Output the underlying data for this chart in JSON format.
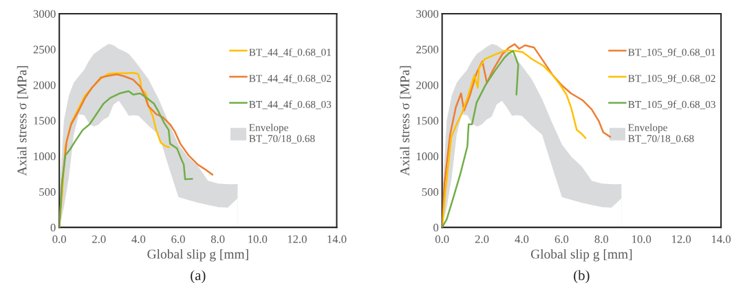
{
  "chart_data": [
    {
      "type": "line",
      "xlabel": "Global slip g [mm]",
      "ylabel": "Axial stress σ [MPa]",
      "annotations": [
        "(a)"
      ],
      "xlim": [
        0,
        14
      ],
      "ylim": [
        0,
        3000
      ],
      "xticks": [
        {
          "value": 0,
          "label": "0.0"
        },
        {
          "value": 2,
          "label": "2.0"
        },
        {
          "value": 4,
          "label": "4.0"
        },
        {
          "value": 6,
          "label": "6.0"
        },
        {
          "value": 8,
          "label": "8.0"
        },
        {
          "value": 10,
          "label": "10.0"
        },
        {
          "value": 12,
          "label": "12.0"
        },
        {
          "value": 14,
          "label": "14.0"
        }
      ],
      "yticks": [
        0,
        500,
        1000,
        1500,
        2000,
        2500,
        3000
      ],
      "grid": false,
      "legend": "right",
      "marker": "none",
      "line_style": "solid",
      "series": [
        {
          "name": "BT_44_4f_0.68_01",
          "color": "#ffc000",
          "x": [
            0,
            0.14,
            0.31,
            0.6,
            0.95,
            1.3,
            1.65,
            2.11,
            2.46,
            2.8,
            3.27,
            3.73,
            3.97,
            4.08,
            4.14,
            4.37,
            4.48,
            4.72,
            4.89,
            5.12,
            5.36,
            5.55
          ],
          "values": [
            0,
            466,
            1141,
            1463,
            1656,
            1849,
            1961,
            2090,
            2154,
            2164,
            2164,
            2170,
            2154,
            2074,
            1945,
            1881,
            1720,
            1559,
            1367,
            1190,
            1141,
            1125
          ]
        },
        {
          "name": "BT_44_4f_0.68_02",
          "color": "#ed7d31",
          "x": [
            0,
            0.14,
            0.37,
            0.6,
            0.95,
            1.3,
            1.65,
            2.11,
            2.46,
            2.92,
            3.27,
            3.73,
            4.08,
            4.31,
            4.49,
            4.89,
            5.24,
            5.59,
            5.82,
            6.11,
            6.52,
            6.98,
            7.33,
            7.73
          ],
          "values": [
            0,
            627,
            1206,
            1447,
            1624,
            1817,
            1961,
            2106,
            2128,
            2148,
            2122,
            2074,
            1977,
            1849,
            1704,
            1592,
            1543,
            1447,
            1350,
            1174,
            1013,
            884,
            820,
            740
          ]
        },
        {
          "name": "BT_44_4f_0.68_03",
          "color": "#70ad47",
          "x": [
            0,
            0.14,
            0.31,
            0.54,
            0.83,
            1.18,
            1.53,
            1.88,
            2.23,
            2.57,
            3.04,
            3.5,
            3.73,
            4.08,
            4.42,
            4.78,
            5.01,
            5.3,
            5.52,
            5.59,
            5.94,
            6.17,
            6.28,
            6.35,
            6.71
          ],
          "values": [
            0,
            627,
            1013,
            1093,
            1222,
            1367,
            1447,
            1592,
            1736,
            1817,
            1881,
            1913,
            1865,
            1881,
            1817,
            1736,
            1624,
            1463,
            1367,
            1174,
            1109,
            949,
            884,
            675,
            682
          ]
        },
        {
          "type": "area",
          "name": "Envelope\nBT_70/18_0.68",
          "color": "#d9dadb",
          "x": [
            0,
            0.1,
            0.25,
            0.5,
            0.75,
            1,
            1.25,
            1.5,
            1.75,
            2,
            2.25,
            2.5,
            2.75,
            3,
            3.25,
            3.5,
            3.75,
            4,
            4.5,
            5,
            5.5,
            6,
            6.5,
            7,
            7.5,
            8,
            8.5,
            9
          ],
          "values": [
            0,
            800,
            1500,
            1850,
            2030,
            2120,
            2200,
            2330,
            2430,
            2480,
            2530,
            2570,
            2550,
            2500,
            2470,
            2430,
            2350,
            2260,
            2070,
            1800,
            1470,
            1160,
            980,
            850,
            650,
            610,
            600,
            600
          ]
        },
        {
          "type": "area",
          "color": "#ffffff",
          "x": [
            0,
            0.1,
            0.25,
            0.5,
            0.75,
            1,
            1.25,
            1.5,
            1.75,
            2,
            2.25,
            2.5,
            2.75,
            3,
            3.25,
            3.5,
            3.75,
            4,
            4.5,
            5,
            5.5,
            6,
            6.5,
            7,
            7.5,
            8,
            8.5,
            9
          ],
          "values": [
            0,
            100,
            280,
            700,
            1300,
            1580,
            1570,
            1450,
            1410,
            1440,
            1510,
            1550,
            1720,
            1770,
            1670,
            1560,
            1570,
            1560,
            1420,
            1300,
            850,
            420,
            380,
            340,
            310,
            280,
            270,
            400
          ]
        }
      ]
    },
    {
      "type": "line",
      "xlabel": "Global slip g [mm]",
      "ylabel": "Axial stress σ [MPa]",
      "annotations": [
        "(b)"
      ],
      "xlim": [
        0,
        14
      ],
      "ylim": [
        0,
        3000
      ],
      "xticks": [
        {
          "value": 0,
          "label": "0.0"
        },
        {
          "value": 2,
          "label": "2.0"
        },
        {
          "value": 4,
          "label": "4.0"
        },
        {
          "value": 6,
          "label": "6.0"
        },
        {
          "value": 8,
          "label": "8.0"
        },
        {
          "value": 10,
          "label": "10.0"
        },
        {
          "value": 12,
          "label": "12.0"
        },
        {
          "value": 14,
          "label": "14.0"
        }
      ],
      "yticks": [
        0,
        500,
        1000,
        1500,
        2000,
        2500,
        3000
      ],
      "grid": false,
      "legend": "right",
      "marker": "none",
      "line_style": "solid",
      "series": [
        {
          "name": "BT_105_9f_0.68_01",
          "color": "#ed7d31",
          "x": [
            0,
            0.12,
            0.4,
            0.69,
            0.95,
            1.1,
            1.39,
            1.73,
            2.02,
            2.25,
            2.54,
            3.01,
            3.35,
            3.64,
            3.87,
            4.16,
            4.62,
            5.09,
            5.55,
            6.01,
            6.47,
            7.05,
            7.51,
            7.86,
            8.09,
            8.44
          ],
          "values": [
            0,
            627,
            1302,
            1688,
            1881,
            1640,
            1849,
            2170,
            2331,
            2026,
            2203,
            2428,
            2524,
            2572,
            2508,
            2556,
            2524,
            2331,
            2138,
            1994,
            1881,
            1785,
            1656,
            1495,
            1334,
            1270
          ]
        },
        {
          "name": "BT_105_9f_0.68_02",
          "color": "#ffc000",
          "x": [
            0,
            0.17,
            0.46,
            0.75,
            0.98,
            1.27,
            1.62,
            1.79,
            1.85,
            2.14,
            2.66,
            3.24,
            3.7,
            4.05,
            4.51,
            5.09,
            5.55,
            5.9,
            6.24,
            6.47,
            6.76,
            6.99,
            7.2
          ],
          "values": [
            0,
            531,
            1270,
            1463,
            1592,
            1817,
            2138,
            1961,
            2235,
            2363,
            2428,
            2486,
            2476,
            2460,
            2363,
            2267,
            2138,
            2010,
            1865,
            1688,
            1367,
            1318,
            1254
          ]
        },
        {
          "name": "BT_105_9f_0.68_03",
          "color": "#70ad47",
          "x": [
            0,
            0.23,
            0.58,
            0.92,
            1.27,
            1.33,
            1.5,
            1.73,
            2.2,
            2.66,
            3.12,
            3.35,
            3.56,
            3.7,
            3.82,
            3.73
          ],
          "values": [
            0,
            113,
            434,
            756,
            1141,
            1447,
            1447,
            1752,
            2010,
            2203,
            2379,
            2444,
            2476,
            2379,
            2283,
            1865
          ]
        },
        {
          "type": "area",
          "name": "Envelope\nBT_70/18_0.68",
          "color": "#d9dadb",
          "x": [
            0,
            0.1,
            0.25,
            0.5,
            0.75,
            1,
            1.25,
            1.5,
            1.75,
            2,
            2.25,
            2.5,
            2.75,
            3,
            3.25,
            3.5,
            3.75,
            4,
            4.5,
            5,
            5.5,
            6,
            6.5,
            7,
            7.5,
            8,
            8.5,
            9
          ],
          "values": [
            0,
            800,
            1500,
            1850,
            2030,
            2120,
            2200,
            2330,
            2430,
            2480,
            2530,
            2570,
            2550,
            2500,
            2470,
            2430,
            2350,
            2260,
            2070,
            1800,
            1470,
            1160,
            980,
            850,
            650,
            610,
            600,
            600
          ]
        },
        {
          "type": "area",
          "color": "#ffffff",
          "x": [
            0,
            0.1,
            0.25,
            0.5,
            0.75,
            1,
            1.25,
            1.5,
            1.75,
            2,
            2.25,
            2.5,
            2.75,
            3,
            3.25,
            3.5,
            3.75,
            4,
            4.5,
            5,
            5.5,
            6,
            6.5,
            7,
            7.5,
            8,
            8.5,
            9
          ],
          "values": [
            0,
            100,
            280,
            700,
            1300,
            1580,
            1570,
            1450,
            1410,
            1440,
            1510,
            1550,
            1720,
            1770,
            1670,
            1560,
            1570,
            1560,
            1420,
            1300,
            850,
            420,
            380,
            340,
            310,
            280,
            270,
            400
          ]
        }
      ]
    }
  ]
}
